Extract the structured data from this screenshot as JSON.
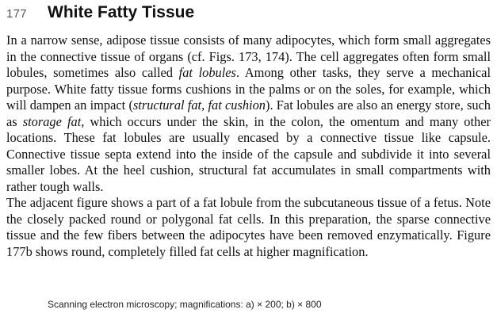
{
  "header": {
    "page_number": "177",
    "title": "White Fatty Tissue"
  },
  "paragraph_1": {
    "s1": "In a narrow sense, adipose tissue consists of many adipocytes, which form small aggregates in the connective tissue of organs (cf. Figs. 173, 174). The cell aggregates often form small lobules, sometimes also called ",
    "s1_em": "fat lobules",
    "s2": ". Among other tasks, they serve a mechanical purpose. White fatty tissue forms cushions in the palms or on the soles, for example, which will dampen an impact (",
    "s2_em": "structural fat, fat cushion",
    "s3": "). Fat lobules are also an energy store, such as ",
    "s3_em": "storage fat",
    "s4": ", which occurs under the skin, in the colon, the omentum and many other locations. These fat lobules are usually encased by a connec­tive tissue like capsule. Connective tissue septa extend into the inside of the capsule and subdivide it into several smaller lobes. At the heel cushion, struc­tural fat accumulates in small compartments with rather tough walls."
  },
  "paragraph_2": {
    "text": "The adjacent figure shows a part of a fat lobule from the subcutaneous tissue of a fetus. Note the closely packed round or polygonal fat cells. In this prep­aration, the sparse connective tissue and the few fibers between the adipo­cytes have been removed enzymatically. Figure 177b shows round, com­pletely filled fat cells at higher magnification."
  },
  "caption": {
    "text": "Scanning electron microscopy; magnifications: a) × 200; b) × 800"
  }
}
